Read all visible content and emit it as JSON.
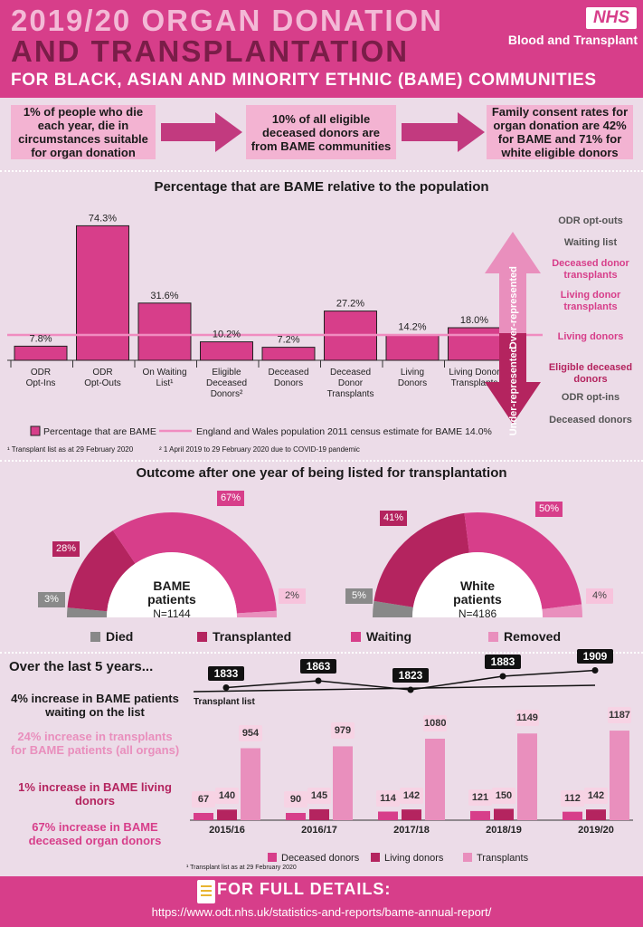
{
  "header": {
    "title_line1": "2019/20 ORGAN DONATION",
    "title_line2": "AND TRANSPLANTATION",
    "subtitle": "FOR BLACK, ASIAN AND MINORITY ETHNIC (BAME) COMMUNITIES",
    "logo": "NHS",
    "organisation": "Blood and Transplant"
  },
  "facts": [
    "1% of people who die each year, die in circumstances suitable for organ donation",
    "10% of all eligible deceased donors are from BAME communities",
    "Family consent rates for organ donation are 42% for BAME and 71% for white eligible donors"
  ],
  "colors": {
    "brand": "#d73e8a",
    "dark": "#b4245f",
    "light": "#e98fbd",
    "pale": "#f3b3d2",
    "grey": "#888888"
  },
  "chart_data": [
    {
      "type": "bar",
      "title": "Percentage that are BAME relative to the population",
      "categories": [
        "ODR Opt-Ins",
        "ODR Opt-Outs",
        "On Waiting List¹",
        "Eligible Deceased Donors²",
        "Deceased Donors",
        "Deceased Donor Transplants",
        "Living Donors",
        "Living Donor Transplants"
      ],
      "values": [
        7.8,
        74.3,
        31.6,
        10.2,
        7.2,
        27.2,
        14.2,
        18.0
      ],
      "value_labels": [
        "7.8%",
        "74.3%",
        "31.6%",
        "10.2%",
        "7.2%",
        "27.2%",
        "14.2%",
        "18.0%"
      ],
      "reference_line": 14.0,
      "legend": [
        "Percentage that are BAME",
        "England and Wales population 2011 census estimate for BAME 14.0%"
      ],
      "footnotes": [
        "¹ Transplant list as at 29 February 2020",
        "² 1 April 2019 to 29 February 2020  due to COVID-19 pandemic"
      ],
      "ylim": [
        0,
        80
      ]
    },
    {
      "type": "pie",
      "title": "Outcome after one year of being listed for transplantation",
      "categories": [
        "Died",
        "Transplanted",
        "Waiting",
        "Removed"
      ],
      "groups": [
        {
          "label_line1": "BAME",
          "label_line2": "patients",
          "n": "N=1144",
          "values": [
            3,
            28,
            67,
            2
          ],
          "value_labels": [
            "3%",
            "28%",
            "67%",
            "2%"
          ]
        },
        {
          "label_line1": "White",
          "label_line2": "patients",
          "n": "N=4186",
          "values": [
            5,
            41,
            50,
            4
          ],
          "value_labels": [
            "5%",
            "41%",
            "50%",
            "4%"
          ]
        }
      ],
      "legend": [
        "Died",
        "Transplanted",
        "Waiting",
        "Removed"
      ]
    },
    {
      "type": "line",
      "series_label": "Transplant list",
      "categories": [
        "2015/16",
        "2016/17",
        "2017/18",
        "2018/19",
        "2019/20"
      ],
      "values": [
        1833,
        1863,
        1823,
        1883,
        1909
      ],
      "value_labels": [
        "1833",
        "1863",
        "1823",
        "1883",
        "1909"
      ],
      "last_marker": "1"
    },
    {
      "type": "bar",
      "categories": [
        "2015/16",
        "2016/17",
        "2017/18",
        "2018/19",
        "2019/20"
      ],
      "series": [
        {
          "name": "Deceased donors",
          "values": [
            67,
            90,
            114,
            121,
            112
          ]
        },
        {
          "name": "Living donors",
          "values": [
            140,
            145,
            142,
            150,
            142
          ]
        },
        {
          "name": "Transplants",
          "values": [
            954,
            979,
            1080,
            1149,
            1187
          ]
        }
      ],
      "ylim": [
        0,
        1200
      ],
      "footnote": "¹ Transplant list as at 29 February 2020"
    }
  ],
  "sidebar": {
    "over_label": "Over-represented",
    "under_label": "Under-represented",
    "items": [
      {
        "text": "ODR opt-outs",
        "color": "#555555"
      },
      {
        "text": "Waiting list",
        "color": "#555555"
      },
      {
        "text": "Deceased donor transplants",
        "color": "#d73e8a"
      },
      {
        "text": "Living donor transplants",
        "color": "#d73e8a"
      },
      {
        "text": "Living donors",
        "color": "#d73e8a"
      },
      {
        "text": "Eligible deceased donors",
        "color": "#b4245f"
      },
      {
        "text": "ODR opt-ins",
        "color": "#555555"
      },
      {
        "text": "Deceased donors",
        "color": "#555555"
      }
    ]
  },
  "five_years": {
    "title": "Over the last 5 years...",
    "stats": [
      {
        "text": "4% increase in BAME patients waiting on the list",
        "color": "#1a1a1a"
      },
      {
        "text": "24% increase in transplants for BAME patients (all organs)",
        "color": "#e98fbd"
      },
      {
        "text": "1% increase in BAME living donors",
        "color": "#b4245f"
      },
      {
        "text": "67% increase in BAME deceased organ donors",
        "color": "#d73e8a"
      }
    ]
  },
  "footer": {
    "title": "FOR FULL DETAILS:",
    "url": "https://www.odt.nhs.uk/statistics-and-reports/bame-annual-report/"
  }
}
